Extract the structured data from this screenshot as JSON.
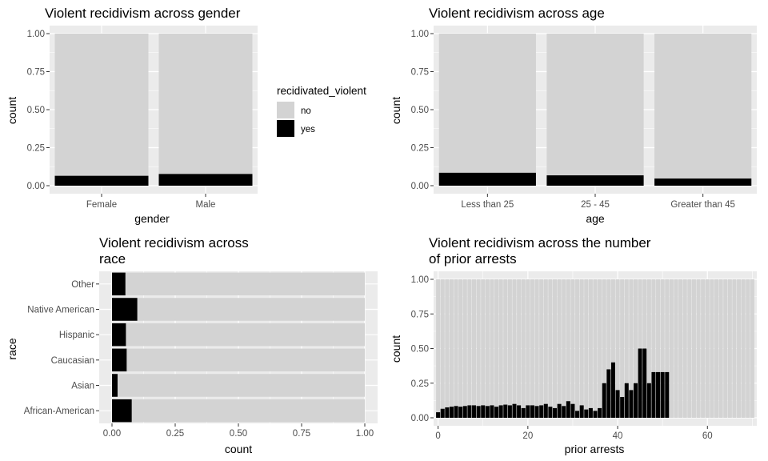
{
  "colors": {
    "panel": "#ebebeb",
    "grid": "#ffffff",
    "no": "#d3d3d3",
    "yes": "#000000"
  },
  "legend": {
    "title": "recidivated_violent",
    "items": [
      {
        "label": "no",
        "color": "#d3d3d3"
      },
      {
        "label": "yes",
        "color": "#000000"
      }
    ]
  },
  "chart_data": [
    {
      "id": "gender",
      "type": "bar",
      "stacked": "fill",
      "orientation": "vertical",
      "title": "Violent recidivism across gender",
      "xlabel": "gender",
      "ylabel": "count",
      "categories": [
        "Female",
        "Male"
      ],
      "series": [
        {
          "name": "no",
          "values": [
            0.935,
            0.923
          ]
        },
        {
          "name": "yes",
          "values": [
            0.065,
            0.077
          ]
        }
      ],
      "ylim": [
        0,
        1
      ],
      "yticks": [
        0,
        0.25,
        0.5,
        0.75,
        1
      ],
      "ytick_labels": [
        "0.00",
        "0.25",
        "0.50",
        "0.75",
        "1.00"
      ],
      "grid": true
    },
    {
      "id": "age",
      "type": "bar",
      "stacked": "fill",
      "orientation": "vertical",
      "title": "Violent recidivism across age",
      "xlabel": "age",
      "ylabel": "count",
      "categories": [
        "Less than 25",
        "25 - 45",
        "Greater than 45"
      ],
      "series": [
        {
          "name": "no",
          "values": [
            0.915,
            0.932,
            0.953
          ]
        },
        {
          "name": "yes",
          "values": [
            0.085,
            0.068,
            0.047
          ]
        }
      ],
      "ylim": [
        0,
        1
      ],
      "yticks": [
        0,
        0.25,
        0.5,
        0.75,
        1
      ],
      "ytick_labels": [
        "0.00",
        "0.25",
        "0.50",
        "0.75",
        "1.00"
      ],
      "grid": true
    },
    {
      "id": "race",
      "type": "bar",
      "stacked": "fill",
      "orientation": "horizontal",
      "title_lines": [
        "Violent recidivism across",
        "race"
      ],
      "xlabel": "count",
      "ylabel": "race",
      "categories": [
        "African-American",
        "Asian",
        "Caucasian",
        "Hispanic",
        "Native American",
        "Other"
      ],
      "series": [
        {
          "name": "no",
          "values": [
            0.922,
            0.978,
            0.942,
            0.945,
            0.9,
            0.947
          ]
        },
        {
          "name": "yes",
          "values": [
            0.078,
            0.022,
            0.058,
            0.055,
            0.1,
            0.053
          ]
        }
      ],
      "xlim": [
        0,
        1
      ],
      "xticks": [
        0,
        0.25,
        0.5,
        0.75,
        1
      ],
      "xtick_labels": [
        "0.00",
        "0.25",
        "0.50",
        "0.75",
        "1.00"
      ],
      "grid": true
    },
    {
      "id": "priors",
      "type": "bar",
      "stacked": "fill",
      "orientation": "vertical",
      "title_lines": [
        "Violent recidivism across the number",
        "of prior arrests"
      ],
      "xlabel": "prior arrests",
      "ylabel": "count",
      "x": [
        0,
        1,
        2,
        3,
        4,
        5,
        6,
        7,
        8,
        9,
        10,
        11,
        12,
        13,
        14,
        15,
        16,
        17,
        18,
        19,
        20,
        21,
        22,
        23,
        24,
        25,
        26,
        27,
        28,
        29,
        30,
        31,
        32,
        33,
        34,
        35,
        36,
        37,
        38,
        39,
        40,
        41,
        42,
        43,
        44,
        45,
        46,
        47,
        48,
        49,
        50,
        51,
        52,
        53,
        54,
        55,
        56,
        57,
        58,
        59,
        60,
        61,
        62,
        63,
        64,
        65,
        66,
        67,
        68,
        69,
        70
      ],
      "series": [
        {
          "name": "yes",
          "values": [
            0.04,
            0.065,
            0.075,
            0.08,
            0.085,
            0.08,
            0.085,
            0.09,
            0.09,
            0.085,
            0.09,
            0.085,
            0.09,
            0.08,
            0.09,
            0.095,
            0.09,
            0.1,
            0.09,
            0.07,
            0.09,
            0.09,
            0.085,
            0.09,
            0.1,
            0.08,
            0.07,
            0.1,
            0.085,
            0.12,
            0.1,
            0.05,
            0.09,
            0.06,
            0.07,
            0.05,
            0.07,
            0.25,
            0.35,
            0.4,
            0.2,
            0.15,
            0.25,
            0.2,
            0.25,
            0.5,
            0.5,
            0.25,
            0.33,
            0.33,
            0.33,
            0.33,
            0,
            0,
            0,
            0,
            0,
            0,
            0,
            0,
            0,
            0,
            0,
            0,
            0,
            0,
            0,
            0,
            0,
            0,
            0
          ]
        }
      ],
      "present": [
        0,
        1,
        2,
        3,
        4,
        5,
        6,
        7,
        8,
        9,
        10,
        11,
        12,
        13,
        14,
        15,
        16,
        17,
        18,
        19,
        20,
        21,
        22,
        23,
        24,
        25,
        26,
        27,
        28,
        29,
        30,
        31,
        32,
        33,
        34,
        35,
        36,
        37,
        38,
        39,
        40,
        41,
        42,
        43,
        44,
        45,
        46,
        47,
        48,
        49,
        50,
        51,
        52,
        53,
        54,
        55,
        56,
        57,
        58,
        59,
        60,
        61,
        62,
        63,
        64,
        65,
        66,
        67,
        68,
        69,
        70
      ],
      "ylim": [
        0,
        1
      ],
      "yticks": [
        0,
        0.25,
        0.5,
        0.75,
        1
      ],
      "ytick_labels": [
        "0.00",
        "0.25",
        "0.50",
        "0.75",
        "1.00"
      ],
      "xticks": [
        0,
        20,
        40,
        60
      ],
      "xtick_labels": [
        "0",
        "20",
        "40",
        "60"
      ],
      "xlim": [
        -1,
        71
      ],
      "grid": true
    }
  ]
}
